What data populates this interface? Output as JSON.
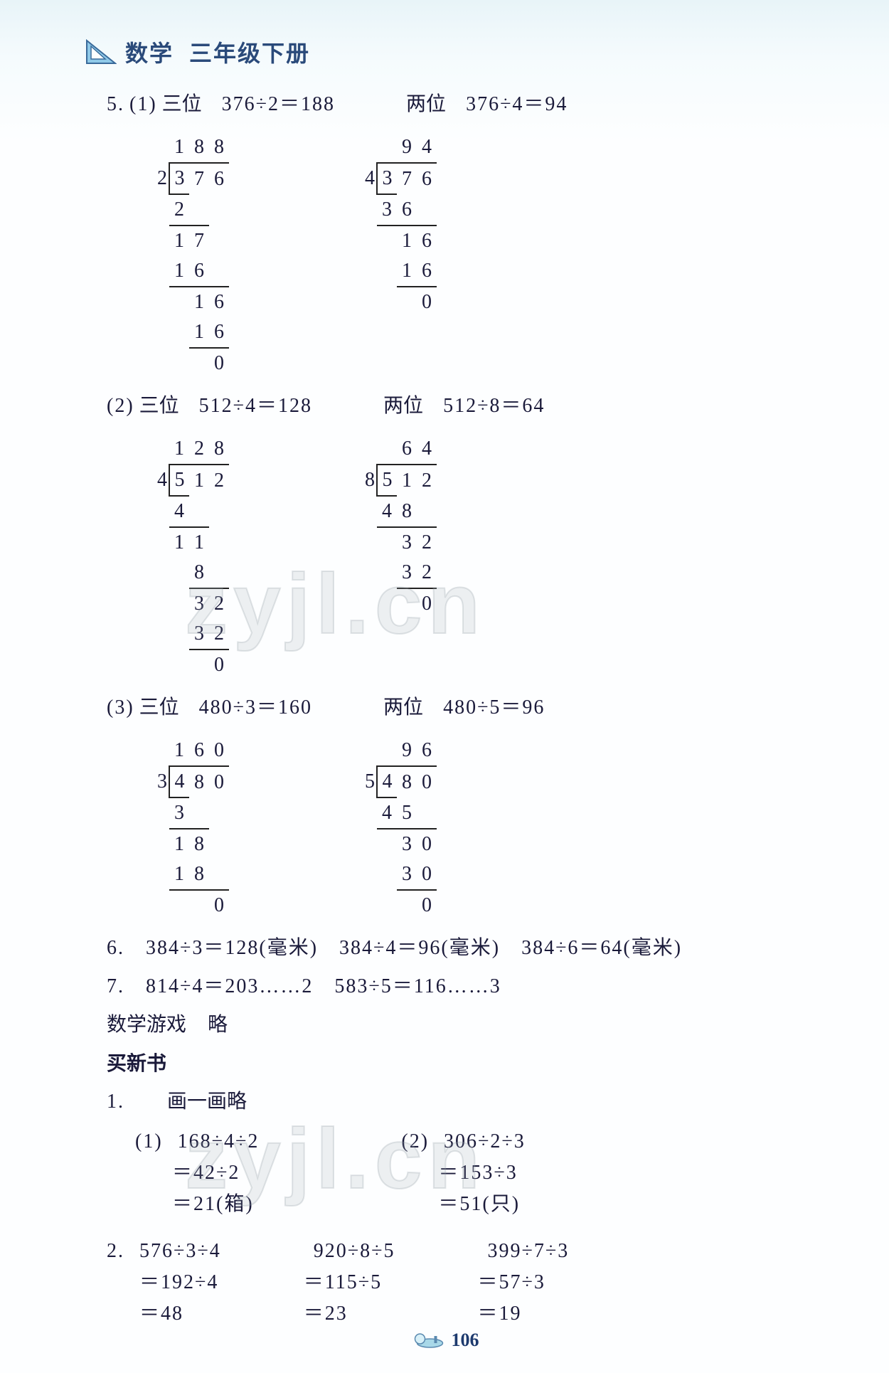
{
  "header": {
    "subject": "数学",
    "grade": "三年级下册"
  },
  "p5": {
    "num": "5.",
    "part1": {
      "tag": "(1)",
      "left": {
        "label": "三位",
        "expr": "376÷2＝188"
      },
      "right": {
        "label": "两位",
        "expr": "376÷4＝94"
      },
      "ld_left": {
        "divisor": "2",
        "dividend": [
          "3",
          "7",
          "6"
        ],
        "quotient": [
          "1",
          "8",
          "8"
        ],
        "rows": [
          [
            "2",
            "",
            ""
          ],
          [
            "1",
            "7",
            ""
          ],
          [
            "1",
            "6",
            ""
          ],
          [
            "",
            "1",
            "6"
          ],
          [
            "",
            "1",
            "6"
          ],
          [
            "",
            "",
            "0"
          ]
        ],
        "rules": [
          true,
          false,
          true,
          false,
          true,
          false
        ],
        "rule_after": true
      },
      "ld_right": {
        "divisor": "4",
        "dividend": [
          "3",
          "7",
          "6"
        ],
        "quotient": [
          "",
          "9",
          "4"
        ],
        "rows": [
          [
            "3",
            "6",
            ""
          ],
          [
            "",
            "1",
            "6"
          ],
          [
            "",
            "1",
            "6"
          ],
          [
            "",
            "",
            "0"
          ]
        ],
        "rules": [
          true,
          false,
          true,
          false
        ],
        "rule_after": true
      }
    },
    "part2": {
      "tag": "(2)",
      "left": {
        "label": "三位",
        "expr": "512÷4＝128"
      },
      "right": {
        "label": "两位",
        "expr": "512÷8＝64"
      },
      "ld_left": {
        "divisor": "4",
        "dividend": [
          "5",
          "1",
          "2"
        ],
        "quotient": [
          "1",
          "2",
          "8"
        ],
        "rows": [
          [
            "4",
            "",
            ""
          ],
          [
            "1",
            "1",
            ""
          ],
          [
            "",
            "8",
            ""
          ],
          [
            "",
            "3",
            "2"
          ],
          [
            "",
            "3",
            "2"
          ],
          [
            "",
            "",
            "0"
          ]
        ],
        "rules": [
          true,
          false,
          true,
          false,
          true,
          false
        ],
        "rule_after": true
      },
      "ld_right": {
        "divisor": "8",
        "dividend": [
          "5",
          "1",
          "2"
        ],
        "quotient": [
          "",
          "6",
          "4"
        ],
        "rows": [
          [
            "4",
            "8",
            ""
          ],
          [
            "",
            "3",
            "2"
          ],
          [
            "",
            "3",
            "2"
          ],
          [
            "",
            "",
            "0"
          ]
        ],
        "rules": [
          true,
          false,
          true,
          false
        ],
        "rule_after": true
      }
    },
    "part3": {
      "tag": "(3)",
      "left": {
        "label": "三位",
        "expr": "480÷3＝160"
      },
      "right": {
        "label": "两位",
        "expr": "480÷5＝96"
      },
      "ld_left": {
        "divisor": "3",
        "dividend": [
          "4",
          "8",
          "0"
        ],
        "quotient": [
          "1",
          "6",
          "0"
        ],
        "rows": [
          [
            "3",
            "",
            ""
          ],
          [
            "1",
            "8",
            ""
          ],
          [
            "1",
            "8",
            ""
          ],
          [
            "",
            "",
            "0"
          ]
        ],
        "rules": [
          true,
          false,
          true,
          false
        ],
        "rule_after": true
      },
      "ld_right": {
        "divisor": "5",
        "dividend": [
          "4",
          "8",
          "0"
        ],
        "quotient": [
          "",
          "9",
          "6"
        ],
        "rows": [
          [
            "4",
            "5",
            ""
          ],
          [
            "",
            "3",
            "0"
          ],
          [
            "",
            "3",
            "0"
          ],
          [
            "",
            "",
            "0"
          ]
        ],
        "rules": [
          true,
          false,
          true,
          false
        ],
        "rule_after": true
      }
    }
  },
  "p6": {
    "num": "6.",
    "a": "384÷3＝128(毫米)",
    "b": "384÷4＝96(毫米)",
    "c": "384÷6＝64(毫米)"
  },
  "p7": {
    "num": "7.",
    "a": "814÷4＝203……2",
    "b": "583÷5＝116……3"
  },
  "game": {
    "label": "数学游戏",
    "ans": "略"
  },
  "section": "买新书",
  "q1": {
    "num": "1.",
    "sub": "画一画略",
    "part1": {
      "tag": "(1)",
      "l1": "168÷4÷2",
      "l2": "＝42÷2",
      "l3": "＝21(箱)"
    },
    "part2": {
      "tag": "(2)",
      "l1": "306÷2÷3",
      "l2": "＝153÷3",
      "l3": "＝51(只)"
    }
  },
  "q2": {
    "num": "2.",
    "c1": {
      "l1": "576÷3÷4",
      "l2": "＝192÷4",
      "l3": "＝48"
    },
    "c2": {
      "l1": "920÷8÷5",
      "l2": "＝115÷5",
      "l3": "＝23"
    },
    "c3": {
      "l1": "399÷7÷3",
      "l2": "＝57÷3",
      "l3": "＝19"
    }
  },
  "pageNumber": "106",
  "watermark": "zyjl.cn"
}
